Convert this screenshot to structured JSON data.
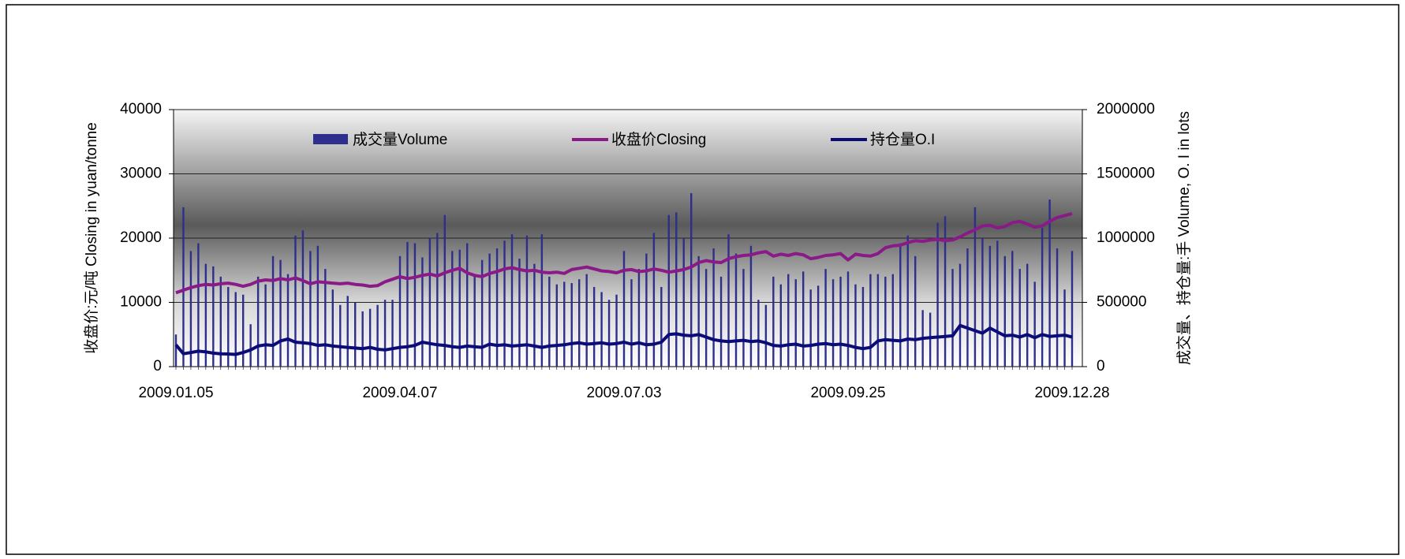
{
  "chart_data": {
    "type": "bar-line",
    "y_label": "收盘价:元/吨 Closing in yuan/tonne",
    "y2_label": "成交量、持仓量:手 Volume, O. I  in lots",
    "ylim": [
      0,
      40000
    ],
    "yticks": [
      0,
      10000,
      20000,
      30000,
      40000
    ],
    "y2lim": [
      0,
      2000000
    ],
    "y2ticks": [
      0,
      500000,
      1000000,
      1500000,
      2000000
    ],
    "grid": true,
    "legend": "top",
    "categories": [
      "2009.01.05",
      null,
      null,
      null,
      null,
      null,
      null,
      null,
      null,
      null,
      null,
      null,
      null,
      null,
      null,
      null,
      null,
      null,
      null,
      null,
      null,
      null,
      null,
      null,
      null,
      null,
      null,
      null,
      null,
      null,
      "2009.04.07",
      null,
      null,
      null,
      null,
      null,
      null,
      null,
      null,
      null,
      null,
      null,
      null,
      null,
      null,
      null,
      null,
      null,
      null,
      null,
      null,
      null,
      null,
      null,
      null,
      null,
      null,
      null,
      null,
      null,
      "2009.07.03",
      null,
      null,
      null,
      null,
      null,
      null,
      null,
      null,
      null,
      null,
      null,
      null,
      null,
      null,
      null,
      null,
      null,
      null,
      null,
      null,
      null,
      null,
      null,
      null,
      null,
      null,
      null,
      null,
      null,
      "2009.09.25",
      null,
      null,
      null,
      null,
      null,
      null,
      null,
      null,
      null,
      null,
      null,
      null,
      null,
      null,
      null,
      null,
      null,
      null,
      null,
      null,
      null,
      null,
      null,
      null,
      null,
      null,
      null,
      null,
      null,
      "2009.12.28"
    ],
    "series": [
      {
        "name": "成交量Volume",
        "kind": "bar",
        "axis": "y2",
        "color": "#2e2e8c",
        "values": [
          250000,
          1240000,
          900000,
          960000,
          800000,
          780000,
          700000,
          620000,
          580000,
          560000,
          330000,
          700000,
          640000,
          860000,
          830000,
          720000,
          1020000,
          1060000,
          900000,
          940000,
          760000,
          600000,
          480000,
          550000,
          500000,
          430000,
          450000,
          480000,
          520000,
          520000,
          860000,
          970000,
          960000,
          850000,
          1000000,
          1040000,
          1180000,
          900000,
          910000,
          960000,
          720000,
          830000,
          880000,
          920000,
          980000,
          1030000,
          840000,
          1020000,
          800000,
          1030000,
          700000,
          640000,
          660000,
          650000,
          680000,
          720000,
          620000,
          580000,
          520000,
          560000,
          900000,
          680000,
          760000,
          880000,
          1040000,
          620000,
          1180000,
          1200000,
          1000000,
          1350000,
          860000,
          760000,
          920000,
          700000,
          1030000,
          880000,
          760000,
          940000,
          520000,
          480000,
          700000,
          640000,
          720000,
          680000,
          740000,
          600000,
          630000,
          760000,
          680000,
          700000,
          740000,
          640000,
          620000,
          720000,
          720000,
          700000,
          720000,
          960000,
          1020000,
          860000,
          440000,
          420000,
          1120000,
          1170000,
          760000,
          800000,
          920000,
          1240000,
          1000000,
          940000,
          980000,
          860000,
          900000,
          760000,
          800000,
          660000,
          1080000,
          1300000,
          920000,
          600000,
          900000
        ]
      },
      {
        "name": "收盘价Closing",
        "kind": "line",
        "axis": "y",
        "color": "#8a1a88",
        "values": [
          11500,
          11900,
          12300,
          12600,
          12800,
          12700,
          12900,
          13000,
          12800,
          12500,
          12800,
          13300,
          13500,
          13400,
          13700,
          13500,
          13800,
          13400,
          12900,
          13200,
          13100,
          13000,
          12900,
          13000,
          12800,
          12700,
          12500,
          12600,
          13200,
          13600,
          14000,
          13700,
          13900,
          14200,
          14400,
          14100,
          14600,
          15000,
          15300,
          14600,
          14200,
          14000,
          14500,
          14800,
          15200,
          15400,
          15100,
          14900,
          15000,
          14700,
          14600,
          14700,
          14500,
          15100,
          15300,
          15500,
          15200,
          14900,
          14800,
          14600,
          15000,
          15100,
          14800,
          14900,
          15200,
          15000,
          14700,
          14900,
          15100,
          15500,
          16200,
          16500,
          16300,
          16200,
          16800,
          17100,
          17300,
          17400,
          17700,
          17900,
          17200,
          17500,
          17300,
          17600,
          17400,
          16800,
          17000,
          17300,
          17400,
          17600,
          16600,
          17500,
          17300,
          17200,
          17600,
          18500,
          18800,
          18900,
          19300,
          19600,
          19500,
          19700,
          19800,
          19600,
          19700,
          20200,
          20800,
          21300,
          21900,
          22000,
          21600,
          21800,
          22400,
          22600,
          22200,
          21700,
          21900,
          22600,
          23200,
          23500,
          23800
        ]
      },
      {
        "name": "持仓量O.I",
        "kind": "line",
        "axis": "y2",
        "color": "#0c0c78",
        "values": [
          170000,
          100000,
          110000,
          120000,
          115000,
          105000,
          100000,
          98000,
          95000,
          110000,
          130000,
          160000,
          170000,
          165000,
          200000,
          215000,
          190000,
          185000,
          180000,
          165000,
          170000,
          160000,
          155000,
          150000,
          145000,
          140000,
          150000,
          135000,
          130000,
          140000,
          150000,
          155000,
          165000,
          190000,
          180000,
          170000,
          165000,
          155000,
          150000,
          160000,
          155000,
          150000,
          175000,
          165000,
          170000,
          160000,
          165000,
          170000,
          160000,
          150000,
          160000,
          165000,
          170000,
          180000,
          185000,
          175000,
          180000,
          185000,
          175000,
          180000,
          190000,
          175000,
          185000,
          170000,
          175000,
          190000,
          250000,
          255000,
          245000,
          240000,
          250000,
          230000,
          210000,
          200000,
          195000,
          200000,
          205000,
          195000,
          200000,
          185000,
          165000,
          160000,
          170000,
          175000,
          160000,
          165000,
          175000,
          180000,
          170000,
          175000,
          165000,
          150000,
          140000,
          150000,
          200000,
          210000,
          205000,
          200000,
          215000,
          210000,
          220000,
          225000,
          230000,
          235000,
          240000,
          320000,
          300000,
          280000,
          260000,
          300000,
          270000,
          240000,
          245000,
          230000,
          250000,
          225000,
          250000,
          235000,
          240000,
          245000,
          230000
        ]
      }
    ]
  }
}
